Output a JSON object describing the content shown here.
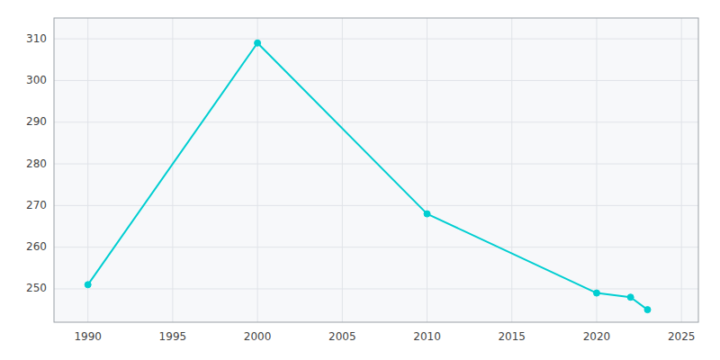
{
  "chart_data": {
    "type": "line",
    "x": [
      1990,
      2000,
      2010,
      2020,
      2022,
      2023
    ],
    "values": [
      251,
      309,
      268,
      249,
      248,
      245
    ],
    "color": "#00CED1",
    "marker": "circle",
    "xlim": [
      1988,
      2026
    ],
    "ylim": [
      242,
      315
    ],
    "xticks": [
      1990,
      1995,
      2000,
      2005,
      2010,
      2015,
      2020,
      2025
    ],
    "yticks": [
      250,
      260,
      270,
      280,
      290,
      300,
      310
    ],
    "grid": true
  }
}
